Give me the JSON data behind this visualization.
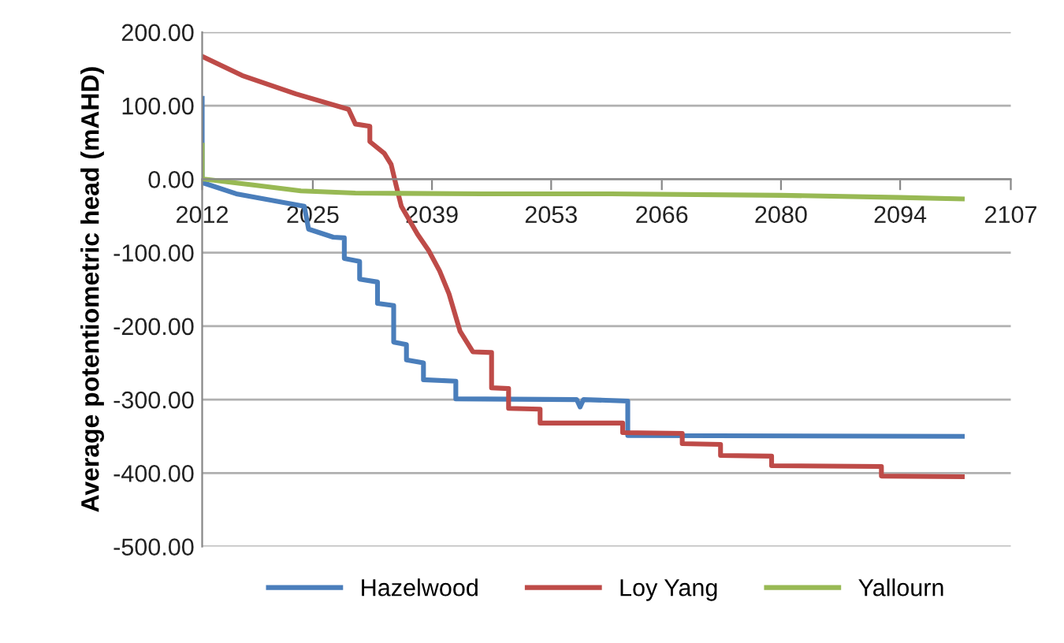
{
  "chart_data": {
    "type": "line",
    "ylabel": "Average potentiometric head (mAHD)",
    "xlim": [
      2012,
      2107
    ],
    "xticks": [
      2012,
      2025,
      2039,
      2053,
      2066,
      2080,
      2094,
      2107
    ],
    "ylim": [
      -500,
      200
    ],
    "yticks": [
      {
        "value": 200,
        "label": "200.00"
      },
      {
        "value": 100,
        "label": "100.00"
      },
      {
        "value": 0,
        "label": "0.00"
      },
      {
        "value": -100,
        "label": "-100.00"
      },
      {
        "value": -200,
        "label": "-200.00"
      },
      {
        "value": -300,
        "label": "-300.00"
      },
      {
        "value": -400,
        "label": "-400.00"
      },
      {
        "value": -500,
        "label": "-500.00"
      }
    ],
    "grid": "y",
    "legend": "bottom",
    "marker": "none",
    "line_style": "solid",
    "series": [
      {
        "name": "Hazelwood",
        "color": "#4a7ebb",
        "x": [
          2012,
          2012,
          2012.1,
          2016,
          2024,
          2024.5,
          2027.4,
          2028.7,
          2028.7,
          2030.5,
          2030.5,
          2032.6,
          2032.6,
          2034.5,
          2034.5,
          2036,
          2036,
          2038,
          2038,
          2041.8,
          2041.8,
          2056,
          2056.4,
          2056.8,
          2062,
          2062,
          2101.3
        ],
        "values": [
          110,
          -5,
          -5,
          -20,
          -37,
          -68,
          -79,
          -80,
          -108,
          -112,
          -136,
          -140,
          -169,
          -172,
          -222,
          -225,
          -246,
          -250,
          -273,
          -275,
          -299,
          -300,
          -310,
          -300,
          -302,
          -349,
          -350
        ]
      },
      {
        "name": "Loy Yang",
        "color": "#be4b48",
        "x": [
          2012,
          2016.7,
          2023,
          2029.2,
          2030,
          2031.7,
          2031.7,
          2033.4,
          2034.2,
          2034.8,
          2035.4,
          2037.3,
          2038.6,
          2039.9,
          2041,
          2042.3,
          2043.8,
          2046,
          2046,
          2048,
          2048,
          2051.7,
          2051.7,
          2061.4,
          2061.4,
          2068.4,
          2068.4,
          2072.9,
          2072.9,
          2078.9,
          2078.9,
          2091.8,
          2091.8,
          2101.3
        ],
        "values": [
          167,
          141,
          116,
          95,
          75,
          72,
          51,
          35,
          20,
          -9,
          -37,
          -75,
          -97,
          -125,
          -156,
          -207,
          -235,
          -236,
          -284,
          -285,
          -312,
          -313,
          -332,
          -332,
          -345,
          -346,
          -360,
          -361,
          -376,
          -377,
          -390,
          -391,
          -404,
          -405
        ]
      },
      {
        "name": "Yallourn",
        "color": "#98b954",
        "x": [
          2012,
          2012,
          2012.2,
          2018,
          2023.6,
          2030,
          2045,
          2060,
          2080,
          2094,
          2101.3
        ],
        "values": [
          46,
          0,
          0,
          -8,
          -16,
          -19,
          -20,
          -20,
          -22,
          -25,
          -27
        ]
      }
    ]
  }
}
